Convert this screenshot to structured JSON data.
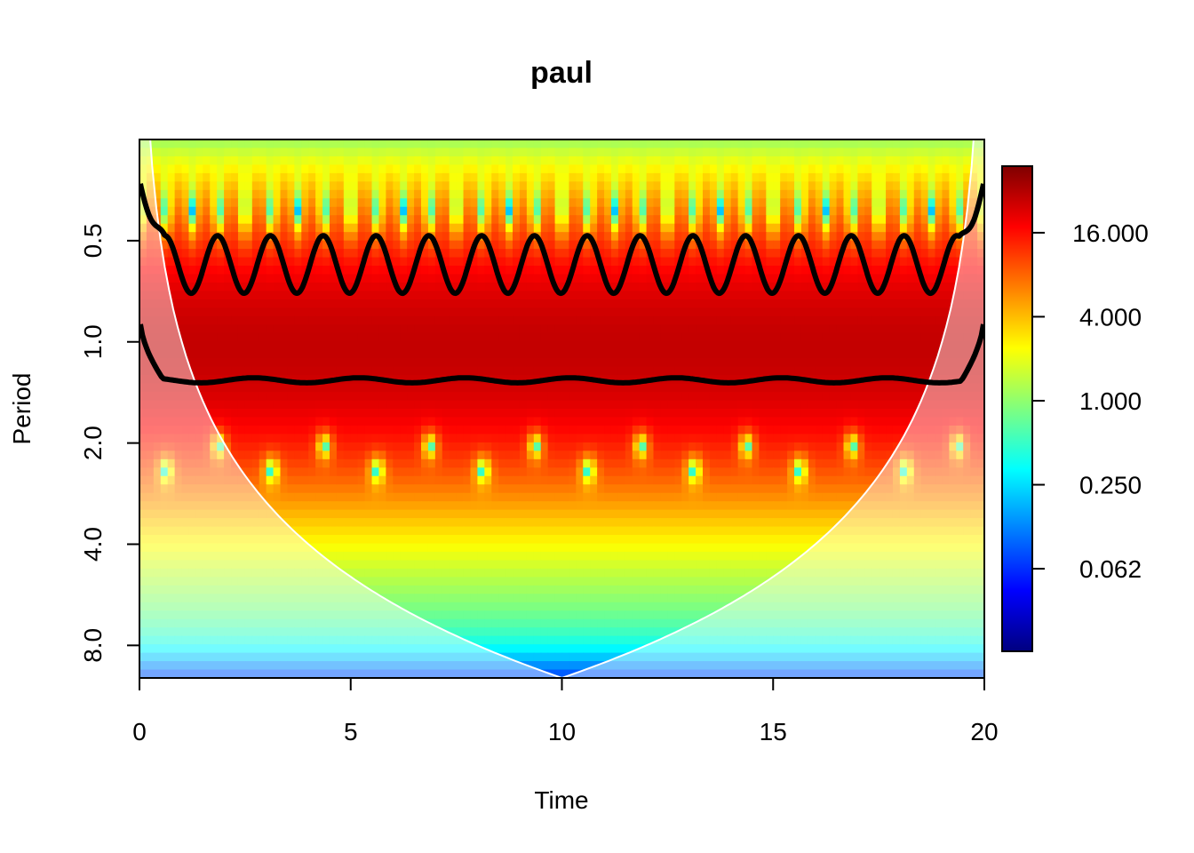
{
  "chart_data": {
    "type": "heatmap",
    "title": "paul",
    "xlabel": "Time",
    "ylabel": "Period",
    "xlim": [
      0,
      20
    ],
    "ylim_period": [
      0.25,
      10.0
    ],
    "y_scale": "log2-reversed",
    "x_ticks": [
      "0",
      "5",
      "10",
      "15",
      "20"
    ],
    "x_tick_values": [
      0,
      5,
      10,
      15,
      20
    ],
    "y_ticks": [
      "0.5",
      "1.0",
      "2.0",
      "4.0",
      "8.0"
    ],
    "y_tick_values": [
      0.5,
      1.0,
      2.0,
      4.0,
      8.0
    ],
    "colorbar": {
      "scale": "log",
      "range": [
        0.016,
        48
      ],
      "labels": [
        "16.000",
        "4.000",
        "1.000",
        "0.250",
        "0.062"
      ],
      "values": [
        16,
        4,
        1,
        0.25,
        0.0625
      ],
      "colormap": [
        "#00007f",
        "#0000ff",
        "#007fff",
        "#00ffff",
        "#7fff7f",
        "#ffff00",
        "#ff7f00",
        "#ff0000",
        "#7f0000"
      ]
    },
    "legend_position": "right",
    "overlays": {
      "cone_of_influence": "white curve shading edges, apex period 10 at time 10",
      "significance_contours": "black lines; wavy contour near period 0.35-0.75 with about 16 oscillations, flat contour near period 1.3"
    }
  }
}
